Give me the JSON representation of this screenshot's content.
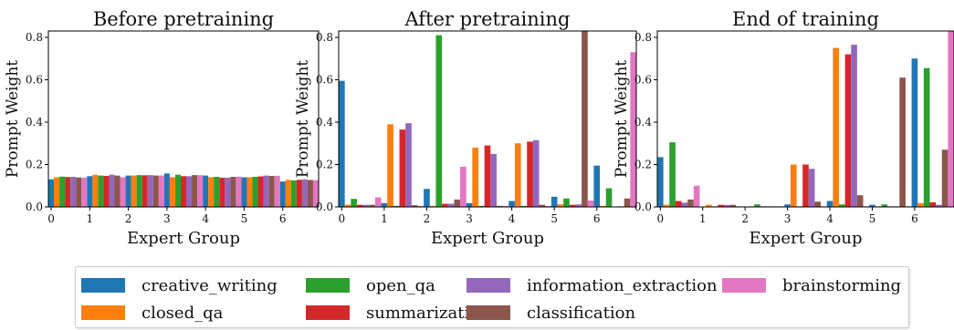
{
  "chart_data": [
    {
      "type": "bar",
      "title": "Before pretraining",
      "xlabel": "Expert Group",
      "ylabel": "Prompt Weight",
      "categories": [
        "0",
        "1",
        "2",
        "3",
        "4",
        "5",
        "6"
      ],
      "ylim": [
        0,
        0.83
      ],
      "yticks": [
        "0.0",
        "0.2",
        "0.4",
        "0.6",
        "0.8"
      ],
      "series": [
        {
          "name": "creative_writing",
          "values": [
            0.13,
            0.145,
            0.148,
            0.158,
            0.148,
            0.14,
            0.12
          ]
        },
        {
          "name": "closed_qa",
          "values": [
            0.14,
            0.152,
            0.148,
            0.14,
            0.14,
            0.14,
            0.128
          ]
        },
        {
          "name": "open_qa",
          "values": [
            0.143,
            0.148,
            0.15,
            0.152,
            0.142,
            0.142,
            0.125
          ]
        },
        {
          "name": "summarization",
          "values": [
            0.141,
            0.146,
            0.149,
            0.145,
            0.138,
            0.144,
            0.128
          ]
        },
        {
          "name": "information_extraction",
          "values": [
            0.142,
            0.152,
            0.15,
            0.145,
            0.138,
            0.148,
            0.13
          ]
        },
        {
          "name": "classification",
          "values": [
            0.139,
            0.148,
            0.148,
            0.15,
            0.142,
            0.146,
            0.127
          ]
        },
        {
          "name": "brainstorming",
          "values": [
            0.138,
            0.14,
            0.148,
            0.15,
            0.143,
            0.147,
            0.126
          ]
        }
      ]
    },
    {
      "type": "bar",
      "title": "After pretraining",
      "xlabel": "Expert Group",
      "ylabel": "Prompt Weight",
      "categories": [
        "0",
        "1",
        "2",
        "3",
        "4",
        "5",
        "6"
      ],
      "ylim": [
        0,
        0.83
      ],
      "yticks": [
        "0.0",
        "0.2",
        "0.4",
        "0.6",
        "0.8"
      ],
      "series": [
        {
          "name": "creative_writing",
          "values": [
            0.595,
            0.018,
            0.085,
            0.018,
            0.028,
            0.048,
            0.195
          ]
        },
        {
          "name": "closed_qa",
          "values": [
            0.01,
            0.39,
            0.005,
            0.28,
            0.3,
            0.012,
            0.005
          ]
        },
        {
          "name": "open_qa",
          "values": [
            0.038,
            0.005,
            0.81,
            0.005,
            0.005,
            0.04,
            0.088
          ]
        },
        {
          "name": "summarization",
          "values": [
            0.01,
            0.365,
            0.015,
            0.29,
            0.308,
            0.01,
            0.002
          ]
        },
        {
          "name": "information_extraction",
          "values": [
            0.01,
            0.395,
            0.015,
            0.25,
            0.315,
            0.012,
            0.003
          ]
        },
        {
          "name": "classification",
          "values": [
            0.01,
            0.008,
            0.035,
            0.005,
            0.01,
            0.83,
            0.04
          ]
        },
        {
          "name": "brainstorming",
          "values": [
            0.045,
            0.005,
            0.19,
            0.005,
            0.005,
            0.03,
            0.73
          ]
        }
      ]
    },
    {
      "type": "bar",
      "title": "End of training",
      "xlabel": "Expert Group",
      "ylabel": "Prompt Weight",
      "categories": [
        "0",
        "1",
        "2",
        "3",
        "4",
        "5",
        "6"
      ],
      "ylim": [
        0,
        0.83
      ],
      "yticks": [
        "0.0",
        "0.2",
        "0.4",
        "0.6",
        "0.8"
      ],
      "series": [
        {
          "name": "creative_writing",
          "values": [
            0.235,
            0.002,
            0.002,
            0.012,
            0.028,
            0.01,
            0.7
          ]
        },
        {
          "name": "closed_qa",
          "values": [
            0.01,
            0.01,
            0.003,
            0.2,
            0.75,
            0.003,
            0.018
          ]
        },
        {
          "name": "open_qa",
          "values": [
            0.305,
            0.003,
            0.012,
            0.003,
            0.012,
            0.012,
            0.655
          ]
        },
        {
          "name": "summarization",
          "values": [
            0.028,
            0.01,
            0.003,
            0.2,
            0.72,
            0.003,
            0.022
          ]
        },
        {
          "name": "information_extraction",
          "values": [
            0.02,
            0.01,
            0.003,
            0.18,
            0.765,
            0.003,
            0.01
          ]
        },
        {
          "name": "classification",
          "values": [
            0.035,
            0.01,
            0.003,
            0.025,
            0.055,
            0.61,
            0.27
          ]
        },
        {
          "name": "brainstorming",
          "values": [
            0.1,
            0.003,
            0.003,
            0.003,
            0.003,
            0.003,
            0.83
          ]
        }
      ]
    }
  ],
  "colors": {
    "creative_writing": "#1f77b4",
    "closed_qa": "#ff7f0e",
    "open_qa": "#2ca02c",
    "summarization": "#d62728",
    "information_extraction": "#9467bd",
    "classification": "#8c564b",
    "brainstorming": "#e377c2"
  },
  "legend": {
    "items": [
      {
        "label": "creative_writing",
        "color": "#1f77b4"
      },
      {
        "label": "closed_qa",
        "color": "#ff7f0e"
      },
      {
        "label": "open_qa",
        "color": "#2ca02c"
      },
      {
        "label": "summarization",
        "color": "#d62728"
      },
      {
        "label": "information_extraction",
        "color": "#9467bd"
      },
      {
        "label": "classification",
        "color": "#8c564b"
      },
      {
        "label": "brainstorming",
        "color": "#e377c2"
      }
    ]
  }
}
